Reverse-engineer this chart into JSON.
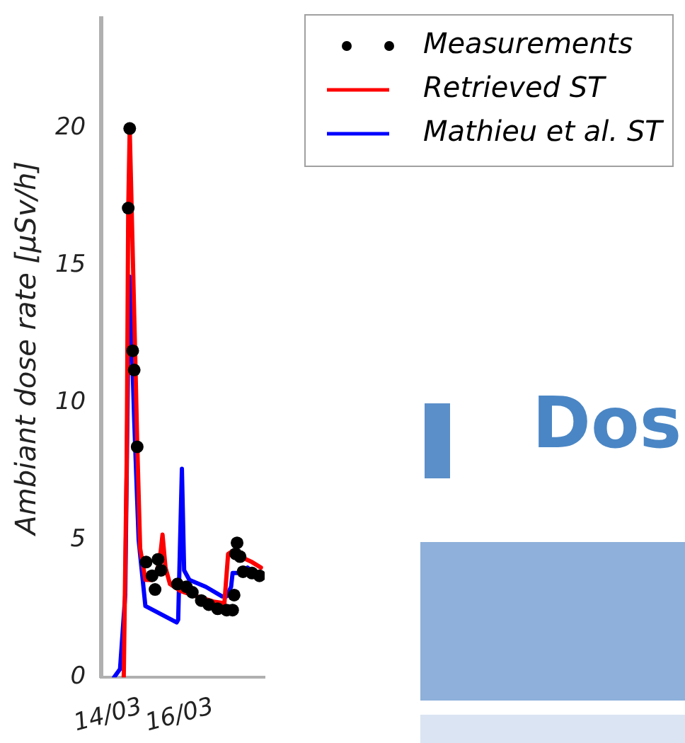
{
  "chart_data": {
    "type": "line",
    "ylabel": "Ambiant dose rate [μSv/h]",
    "xlim": [
      "--03-12T21:00",
      "--03-17T10:30"
    ],
    "xticks": [
      {
        "value": "--03-14",
        "label": "14/03"
      },
      {
        "value": "--03-16",
        "label": "16/03"
      }
    ],
    "ylim": [
      0,
      24
    ],
    "yticks": [
      0,
      5,
      10,
      15,
      20
    ],
    "grid": false,
    "legend": "top right",
    "annotations": [
      "Dos"
    ],
    "series": [
      {
        "name": "Measurements",
        "type": "scatter",
        "marker": "circle",
        "color": "#000000",
        "x": [
          "--03-13T15:00",
          "--03-13T16:00",
          "--03-13T18:00",
          "--03-13T19:00",
          "--03-13T21:00",
          "--03-14T03:00",
          "--03-14T07:00",
          "--03-14T09:00",
          "--03-14T11:00",
          "--03-14T13:00",
          "--03-15T00:00",
          "--03-15T06:00",
          "--03-15T10:00",
          "--03-15T16:00",
          "--03-15T21:00",
          "--03-16T03:00",
          "--03-16T09:00",
          "--03-16T13:00",
          "--03-16T14:00",
          "--03-16T15:00",
          "--03-16T16:00",
          "--03-16T18:00",
          "--03-16T20:00",
          "--03-17T02:00",
          "--03-17T07:00"
        ],
        "values": [
          17.1,
          20,
          11.9,
          11.2,
          8.4,
          4.2,
          3.7,
          3.2,
          4.3,
          3.9,
          3.4,
          3.3,
          3.1,
          2.8,
          2.65,
          2.5,
          2.45,
          2.45,
          3.0,
          4.5,
          4.9,
          4.4,
          3.85,
          3.8,
          3.7
        ]
      },
      {
        "name": "Retrieved ST",
        "color": "#ff0000",
        "x": [
          "--03-13T12:00",
          "--03-13T14:00",
          "--03-13T15:00",
          "--03-13T16:00",
          "--03-13T20:00",
          "--03-13T21:00",
          "--03-13T23:00",
          "--03-14T02:30",
          "--03-14T07:00",
          "--03-14T09:00",
          "--03-14T12:00",
          "--03-14T14:00",
          "--03-14T16:00",
          "--03-14T19:00",
          "--03-15T02:00",
          "--03-15T13:00",
          "--03-16T01:00",
          "--03-16T07:30",
          "--03-16T10:00",
          "--03-16T13:00",
          "--03-16T18:00",
          "--03-17T02:00",
          "--03-17T08:00"
        ],
        "values": [
          0,
          8,
          17,
          20,
          11,
          8.6,
          4.7,
          3.55,
          3.55,
          3.7,
          4.2,
          5.2,
          4.0,
          3.4,
          3.15,
          2.95,
          2.75,
          2.7,
          4.5,
          4.6,
          4.4,
          4.2,
          4.0
        ]
      },
      {
        "name": "Mathieu et al. ST",
        "color": "#0000ff",
        "x": [
          "--03-13T05:30",
          "--03-13T09:30",
          "--03-13T13:00",
          "--03-13T15:00",
          "--03-13T16:00",
          "--03-13T19:00",
          "--03-13T22:00",
          "--03-14T02:30",
          "--03-14T23:30",
          "--03-15T00:30",
          "--03-15T03:00",
          "--03-15T04:30",
          "--03-15T08:00",
          "--03-15T19:00",
          "--03-16T06:00",
          "--03-16T09:00",
          "--03-16T12:00",
          "--03-16T13:00",
          "--03-16T18:00",
          "--03-16T23:00",
          "--03-17T08:00"
        ],
        "values": [
          0,
          0.3,
          3,
          12,
          14.6,
          9.4,
          5,
          2.6,
          2.0,
          2.1,
          7.6,
          3.9,
          3.55,
          3.3,
          2.95,
          2.95,
          3.3,
          3.8,
          3.8,
          4.0,
          3.6
        ]
      }
    ]
  }
}
